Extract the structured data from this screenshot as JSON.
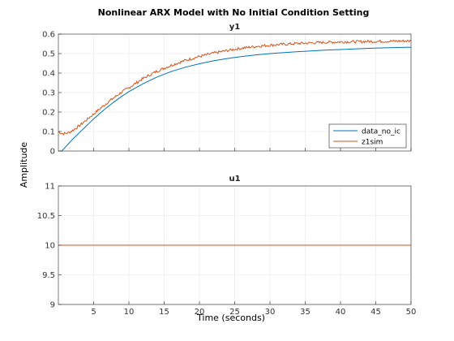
{
  "chart_data": {
    "type": "line",
    "title": "Nonlinear ARX Model with No Initial Condition Setting",
    "xlabel": "Time (seconds)",
    "ylabel": "Amplitude",
    "x_ticks": [
      5,
      10,
      15,
      20,
      25,
      30,
      35,
      40,
      45,
      50
    ],
    "xlim": [
      0,
      50
    ],
    "grid": true,
    "colors": {
      "data_no_ic": "#0072BD",
      "z1sim": "#D95319",
      "grid": "#e6e6e6",
      "axis": "#262626"
    },
    "axes": [
      {
        "name": "y1",
        "ylim": [
          0,
          0.6
        ],
        "y_ticks": [
          0,
          0.1,
          0.2,
          0.3,
          0.4,
          0.5,
          0.6
        ],
        "legend": {
          "placement": "bottom-right",
          "entries": [
            "data_no_ic",
            "z1sim"
          ]
        },
        "series": [
          {
            "name": "data_no_ic",
            "x": [
              0,
              0.5,
              1,
              1.5,
              2,
              3,
              4,
              5,
              6,
              7,
              8,
              9,
              10,
              12,
              14,
              16,
              18,
              20,
              22,
              24,
              26,
              28,
              30,
              32,
              34,
              36,
              38,
              40,
              42,
              44,
              46,
              48,
              50
            ],
            "y": [
              0,
              0,
              0.02,
              0.04,
              0.06,
              0.095,
              0.13,
              0.165,
              0.197,
              0.227,
              0.255,
              0.281,
              0.305,
              0.345,
              0.38,
              0.408,
              0.43,
              0.448,
              0.463,
              0.475,
              0.485,
              0.493,
              0.5,
              0.505,
              0.51,
              0.514,
              0.518,
              0.521,
              0.524,
              0.527,
              0.529,
              0.531,
              0.533
            ]
          },
          {
            "name": "z1sim",
            "x": [
              0,
              0.5,
              1,
              1.5,
              2,
              3,
              4,
              5,
              6,
              7,
              8,
              9,
              10,
              12,
              14,
              16,
              18,
              20,
              22,
              24,
              26,
              28,
              30,
              32,
              34,
              36,
              38,
              40,
              42,
              44,
              46,
              48,
              50
            ],
            "y": [
              0.1,
              0.09,
              0.09,
              0.095,
              0.105,
              0.13,
              0.16,
              0.19,
              0.22,
              0.25,
              0.277,
              0.303,
              0.325,
              0.372,
              0.41,
              0.44,
              0.465,
              0.485,
              0.502,
              0.516,
              0.528,
              0.537,
              0.543,
              0.548,
              0.552,
              0.555,
              0.558,
              0.56,
              0.561,
              0.562,
              0.563,
              0.564,
              0.565
            ]
          }
        ]
      },
      {
        "name": "u1",
        "ylim": [
          9,
          11
        ],
        "y_ticks": [
          9,
          9.5,
          10,
          10.5,
          11
        ],
        "series": [
          {
            "name": "u1",
            "x": [
              0,
              50
            ],
            "y": [
              10,
              10
            ]
          }
        ]
      }
    ]
  }
}
